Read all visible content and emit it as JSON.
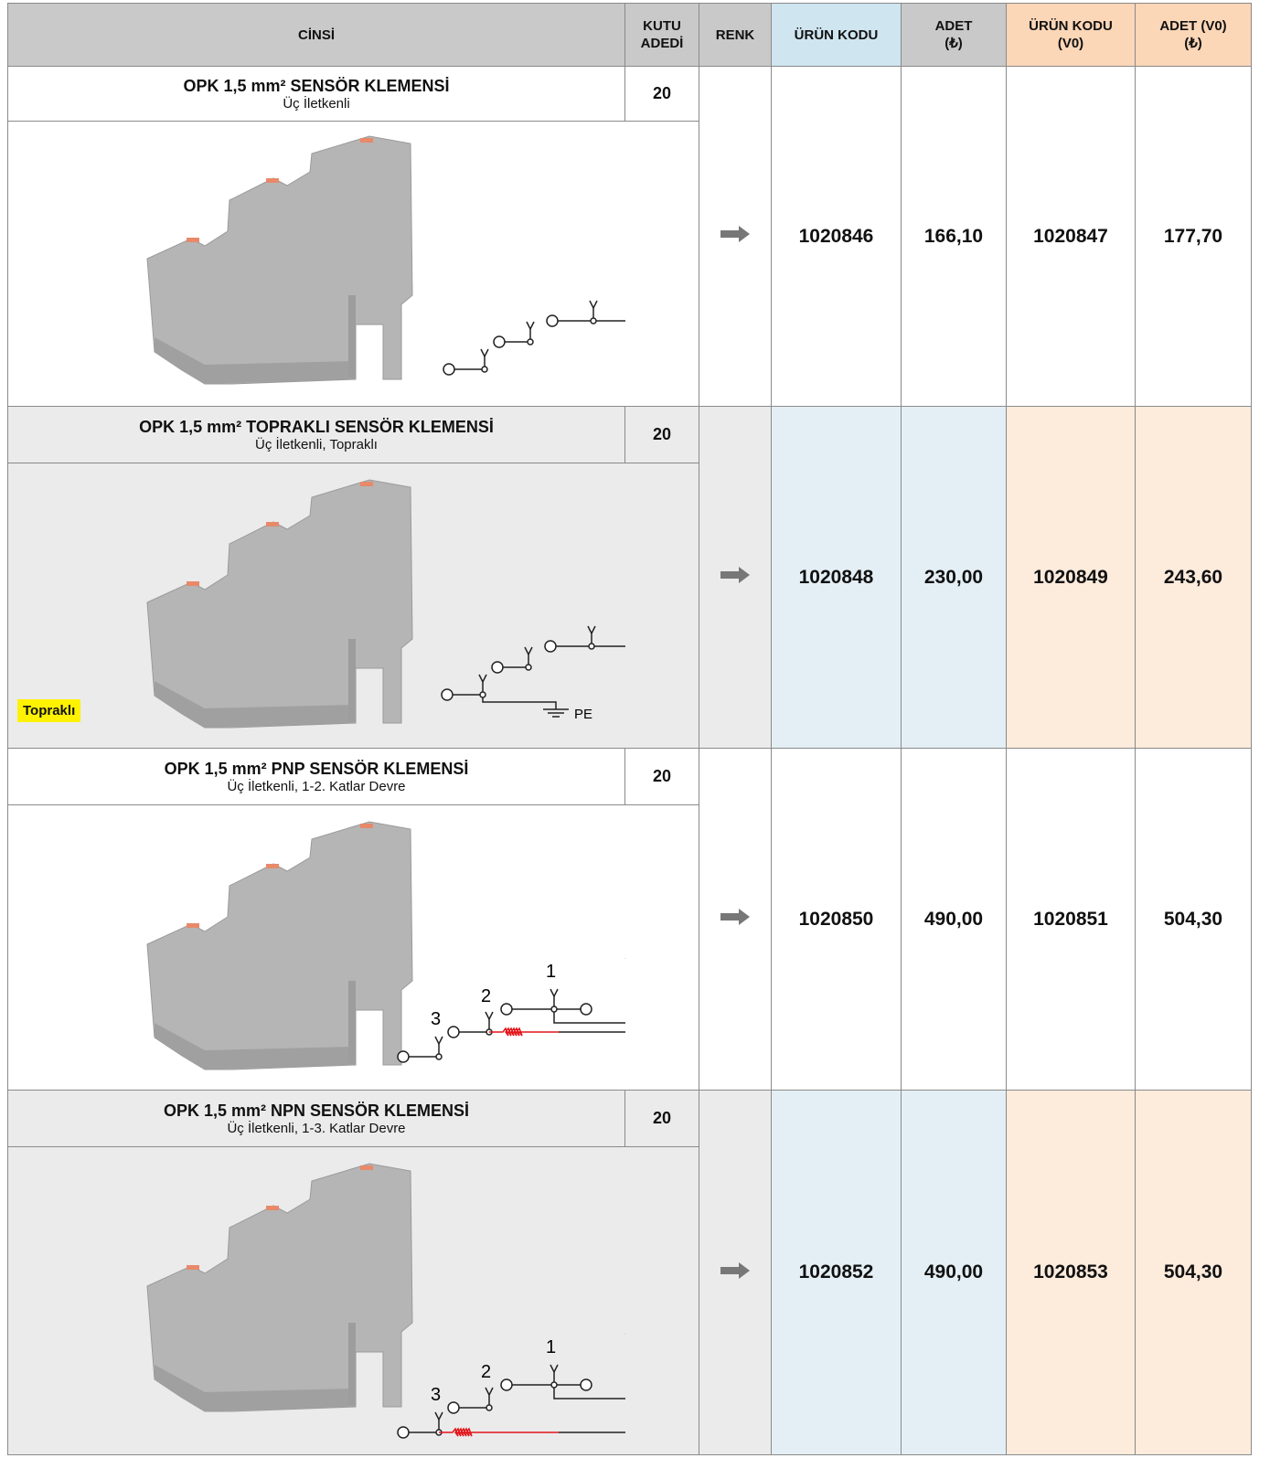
{
  "header": {
    "columns": [
      "CİNSİ",
      "KUTU\nADEDİ",
      "RENK",
      "ÜRÜN KODU",
      "ADET\n(₺)",
      "ÜRÜN KODU\n(V0)",
      "ADET (V0)\n(₺)"
    ]
  },
  "rows": [
    {
      "title": "OPK 1,5 mm² SENSÖR KLEMENSİ",
      "subtitle": "Üç İletkenli",
      "box_qty": "20",
      "code": "1020846",
      "price": "166,10",
      "code_v0": "1020847",
      "price_v0": "177,70"
    },
    {
      "title": "OPK 1,5 mm² TOPRAKLI SENSÖR KLEMENSİ",
      "subtitle": "Üç İletkenli, Topraklı",
      "box_qty": "20",
      "code": "1020848",
      "price": "230,00",
      "code_v0": "1020849",
      "price_v0": "243,60",
      "badge": "Topraklı",
      "diagram_labels": [
        "PE"
      ]
    },
    {
      "title": "OPK 1,5 mm² PNP SENSÖR KLEMENSİ",
      "subtitle": "Üç İletkenli, 1-2. Katlar Devre",
      "box_qty": "20",
      "code": "1020850",
      "price": "490,00",
      "code_v0": "1020851",
      "price_v0": "504,30",
      "diagram_labels": [
        "1",
        "2",
        "3"
      ]
    },
    {
      "title": "OPK 1,5 mm² NPN SENSÖR KLEMENSİ",
      "subtitle": "Üç İletkenli, 1-3. Katlar Devre",
      "box_qty": "20",
      "code": "1020852",
      "price": "490,00",
      "code_v0": "1020853",
      "price_v0": "504,30",
      "diagram_labels": [
        "1",
        "2",
        "3"
      ]
    }
  ]
}
